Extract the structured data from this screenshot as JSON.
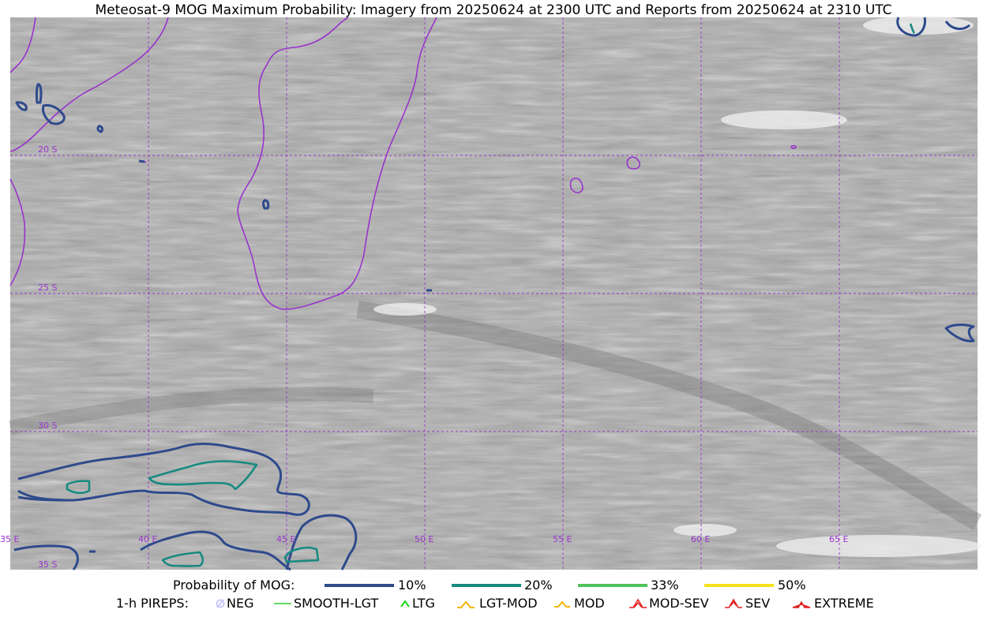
{
  "title": "Meteosat-9 MOG Maximum Probability: Imagery from 20250624 at 2300 UTC and Reports from 20250624 at 2310 UTC",
  "map": {
    "lat_labels": [
      "20 S",
      "25 S",
      "30 S",
      "35 S"
    ],
    "lon_labels": [
      "35 E",
      "40 E",
      "45 E",
      "50 E",
      "55 E",
      "60 E",
      "65 E"
    ],
    "colors": {
      "coastline": "#9933cc",
      "grid": "#9933cc",
      "prob10": "#2e4a8c",
      "prob20": "#178a80",
      "prob33": "#4fc35a",
      "prob50": "#f5e21c"
    }
  },
  "legend": {
    "probability_title": "Probability of MOG:",
    "probability_levels": [
      {
        "label": "10%",
        "color": "#2e4a8c"
      },
      {
        "label": "20%",
        "color": "#178a80"
      },
      {
        "label": "33%",
        "color": "#4fc35a"
      },
      {
        "label": "50%",
        "color": "#f5e21c"
      }
    ],
    "pireps_title": "1-h PIREPS:",
    "pireps": [
      {
        "label": "NEG",
        "icon": "neg-icon",
        "color": "#c8c8f8"
      },
      {
        "label": "SMOOTH-LGT",
        "icon": "smooth-lgt-icon",
        "color": "#33cc33"
      },
      {
        "label": "LTG",
        "icon": "ltg-icon",
        "color": "#1fd81f"
      },
      {
        "label": "LGT-MOD",
        "icon": "lgt-mod-icon",
        "color": "#f2b400"
      },
      {
        "label": "MOD",
        "icon": "mod-icon",
        "color": "#f2b400"
      },
      {
        "label": "MOD-SEV",
        "icon": "mod-sev-icon",
        "color": "#e02020"
      },
      {
        "label": "SEV",
        "icon": "sev-icon",
        "color": "#e02020"
      },
      {
        "label": "EXTREME",
        "icon": "extreme-icon",
        "color": "#e02020"
      }
    ]
  }
}
